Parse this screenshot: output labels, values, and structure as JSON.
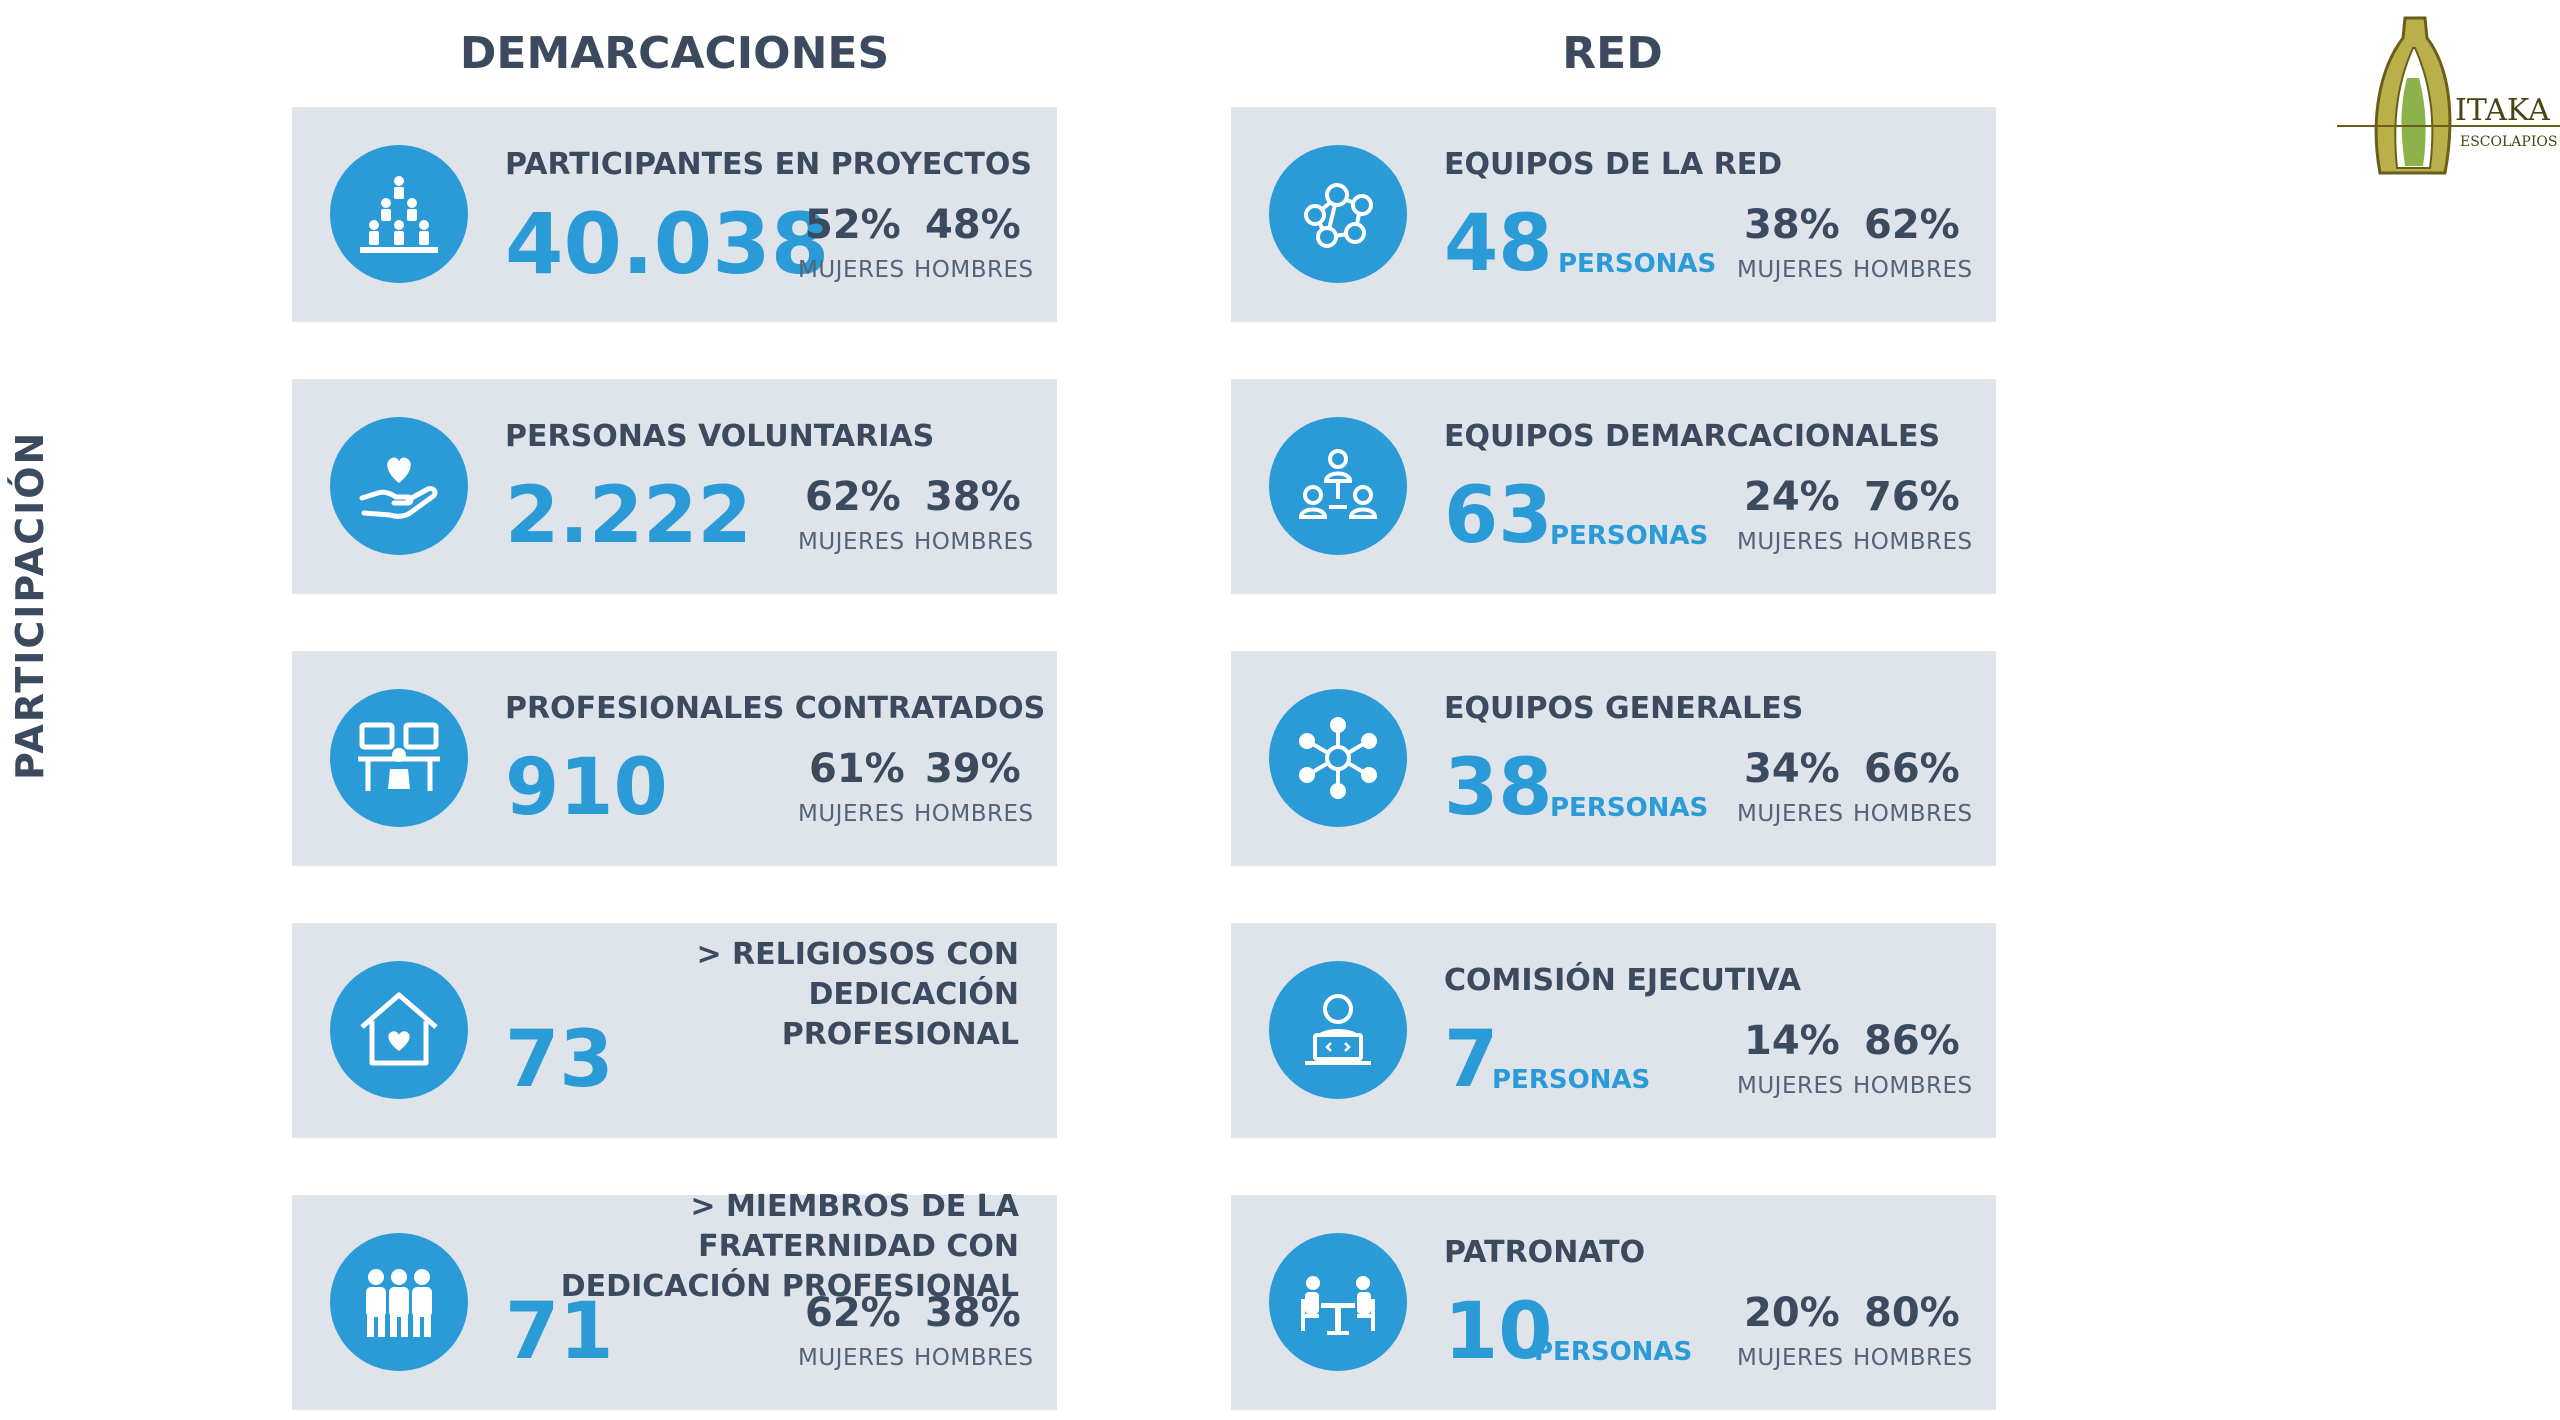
{
  "side_title": "PARTICIPACIÓN",
  "columns": {
    "left": "DEMARCACIONES",
    "right": "RED"
  },
  "logo": {
    "name": "ITAKA",
    "sub": "ESCOLAPIOS"
  },
  "colors": {
    "accent": "#2a9bd6",
    "text": "#3b4a5e",
    "card": "#dfe3ea"
  },
  "left_cards": [
    {
      "icon": "people-pyramid-icon",
      "label": "PARTICIPANTES EN PROYECTOS",
      "value": "40.038",
      "p1": "52%",
      "p2": "48%",
      "s1": "MUJERES",
      "s2": "HOMBRES"
    },
    {
      "icon": "heart-hand-icon",
      "label": "PERSONAS VOLUNTARIAS",
      "value": "2.222",
      "p1": "62%",
      "p2": "38%",
      "s1": "MUJERES",
      "s2": "HOMBRES"
    },
    {
      "icon": "workstations-icon",
      "label": "PROFESIONALES CONTRATADOS",
      "value": "910",
      "p1": "61%",
      "p2": "39%",
      "s1": "MUJERES",
      "s2": "HOMBRES"
    },
    {
      "icon": "heart-house-icon",
      "label_line1": "> RELIGIOSOS CON DEDICACIÓN",
      "label_line2": "PROFESIONAL",
      "value": "73"
    },
    {
      "icon": "group-people-icon",
      "label_line1": "> MIEMBROS DE LA",
      "label_line2": "FRATERNIDAD CON",
      "label_line3": "DEDICACIÓN PROFESIONAL",
      "value": "71",
      "p1": "62%",
      "p2": "38%",
      "s1": "MUJERES",
      "s2": "HOMBRES"
    }
  ],
  "right_cards": [
    {
      "icon": "network-icon",
      "label": "EQUIPOS DE LA RED",
      "value": "48",
      "unit": "PERSONAS",
      "p1": "38%",
      "p2": "62%",
      "s1": "MUJERES",
      "s2": "HOMBRES"
    },
    {
      "icon": "team-hierarchy-icon",
      "label": "EQUIPOS DEMARCACIONALES",
      "value": "63",
      "unit": "PERSONAS",
      "p1": "24%",
      "p2": "76%",
      "s1": "MUJERES",
      "s2": "HOMBRES"
    },
    {
      "icon": "hub-network-icon",
      "label": "EQUIPOS GENERALES",
      "value": "38",
      "unit": "PERSONAS",
      "p1": "34%",
      "p2": "66%",
      "s1": "MUJERES",
      "s2": "HOMBRES"
    },
    {
      "icon": "laptop-person-icon",
      "label": "COMISIÓN EJECUTIVA",
      "value": "7",
      "unit": "PERSONAS",
      "p1": "14%",
      "p2": "86%",
      "s1": "MUJERES",
      "s2": "HOMBRES"
    },
    {
      "icon": "meeting-table-icon",
      "label": "PATRONATO",
      "value": "10",
      "unit": "PERSONAS",
      "p1": "20%",
      "p2": "80%",
      "s1": "MUJERES",
      "s2": "HOMBRES"
    }
  ]
}
